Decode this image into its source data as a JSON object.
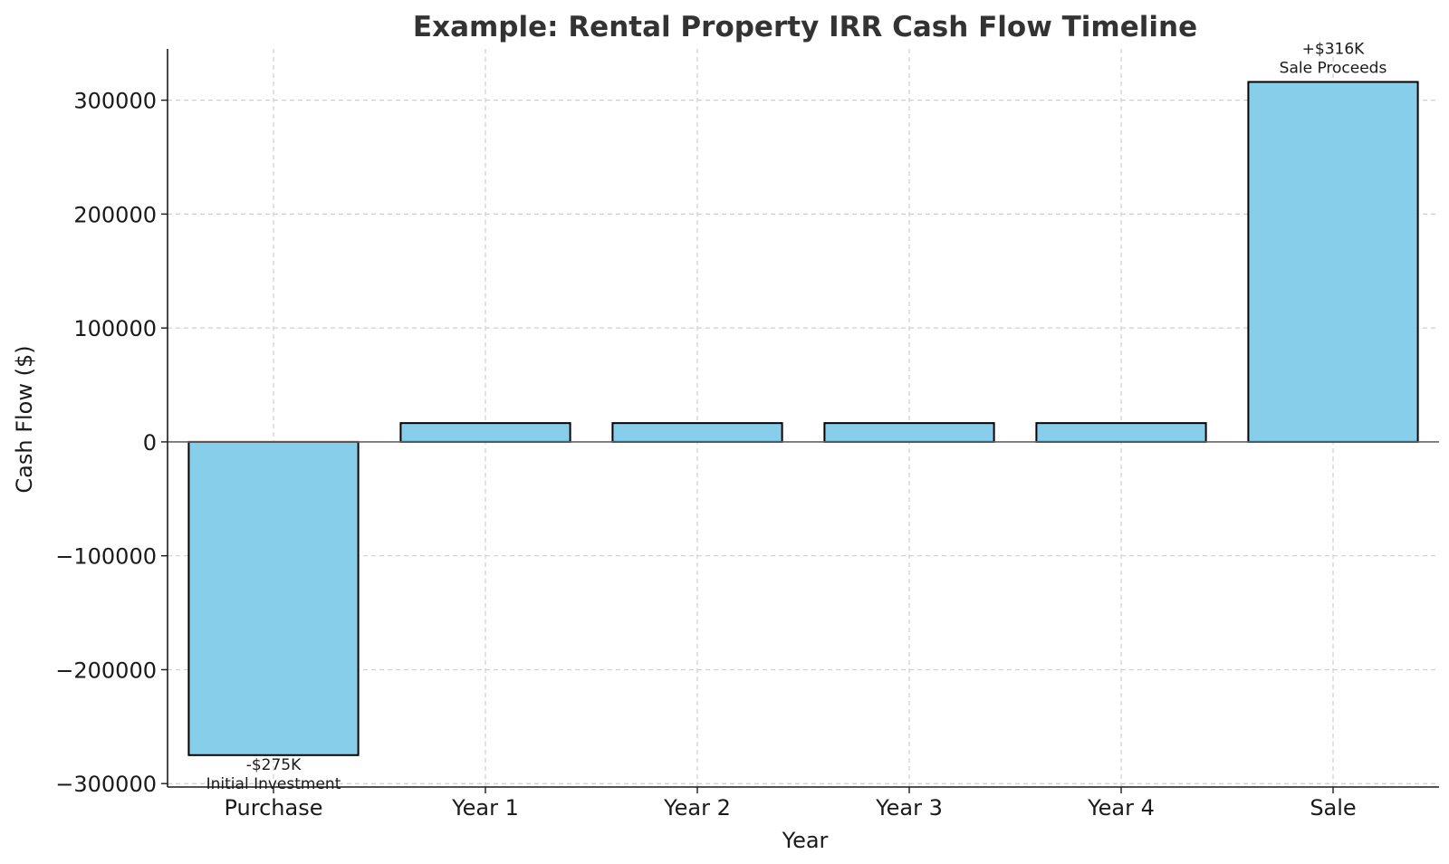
{
  "chart_data": {
    "type": "bar",
    "title": "Example: Rental Property IRR Cash Flow Timeline",
    "xlabel": "Year",
    "ylabel": "Cash Flow ($)",
    "categories": [
      "Purchase",
      "Year 1",
      "Year 2",
      "Year 3",
      "Year 4",
      "Sale"
    ],
    "values": [
      -275000,
      16500,
      16500,
      16500,
      16500,
      316000
    ],
    "ylim": [
      -303000,
      345000
    ],
    "yticks": [
      -300000,
      -200000,
      -100000,
      0,
      100000,
      200000,
      300000
    ],
    "ytick_labels": [
      "−300000",
      "−200000",
      "−100000",
      "0",
      "100000",
      "200000",
      "300000"
    ],
    "grid": true,
    "bar_color": "#87ceeb",
    "annotations": [
      {
        "category": "Purchase",
        "lines": [
          "-$275K",
          "Initial Investment"
        ],
        "position": "below"
      },
      {
        "category": "Sale",
        "lines": [
          "+$316K",
          "Sale Proceeds"
        ],
        "position": "above"
      }
    ]
  }
}
